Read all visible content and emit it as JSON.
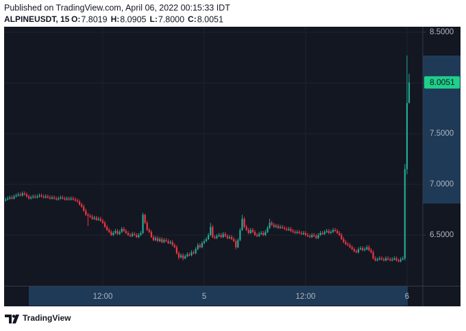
{
  "header": {
    "published": "Published on TradingView.com, April 06, 2022 00:15:33 IDT",
    "symbol": "ALPINEUSDT, 15",
    "legend": [
      {
        "label": "O:",
        "value": "7.8019"
      },
      {
        "label": "H:",
        "value": "8.0905"
      },
      {
        "label": "L:",
        "value": "7.8000"
      },
      {
        "label": "C:",
        "value": "8.0051"
      }
    ]
  },
  "footer": {
    "brand": "TradingView"
  },
  "chart_data": {
    "type": "candlestick",
    "categories": [
      null,
      null,
      null,
      null,
      null,
      null,
      null,
      null,
      null,
      null,
      null,
      null,
      null,
      null,
      null,
      null,
      null,
      null,
      null,
      null,
      null,
      null,
      null,
      null,
      null,
      null,
      null,
      null,
      null,
      null,
      null,
      null,
      null,
      null,
      null,
      null,
      null,
      null,
      null,
      null,
      null,
      null,
      null,
      null,
      null,
      null,
      "12:00",
      null,
      null,
      null,
      null,
      null,
      null,
      null,
      null,
      null,
      null,
      null,
      null,
      null,
      null,
      null,
      null,
      null,
      null,
      null,
      null,
      null,
      null,
      null,
      null,
      null,
      null,
      null,
      null,
      null,
      null,
      null,
      null,
      null,
      null,
      null,
      null,
      null,
      null,
      null,
      null,
      null,
      null,
      null,
      null,
      null,
      null,
      null,
      "5",
      null,
      null,
      null,
      null,
      null,
      null,
      null,
      null,
      null,
      null,
      null,
      null,
      null,
      null,
      null,
      null,
      null,
      null,
      null,
      null,
      null,
      null,
      null,
      null,
      null,
      null,
      null,
      null,
      null,
      null,
      null,
      null,
      null,
      null,
      null,
      null,
      null,
      null,
      null,
      null,
      null,
      null,
      null,
      null,
      null,
      null,
      null,
      "12:00",
      null,
      null,
      null,
      null,
      null,
      null,
      null,
      null,
      null,
      null,
      null,
      null,
      null,
      null,
      null,
      null,
      null,
      null,
      null,
      null,
      null,
      null,
      null,
      null,
      null,
      null,
      null,
      null,
      null,
      null,
      null,
      null,
      null,
      null,
      null,
      null,
      null,
      null,
      null,
      null,
      null,
      null,
      null,
      null,
      null,
      null,
      null,
      "6",
      null
    ],
    "open": [
      6.84,
      6.85,
      6.86,
      6.87,
      6.86,
      6.88,
      6.89,
      6.9,
      6.89,
      6.91,
      6.9,
      6.88,
      6.86,
      6.87,
      6.88,
      6.87,
      6.88,
      6.89,
      6.88,
      6.87,
      6.88,
      6.87,
      6.86,
      6.87,
      6.86,
      6.85,
      6.86,
      6.87,
      6.86,
      6.85,
      6.86,
      6.85,
      6.86,
      6.85,
      6.84,
      6.83,
      6.8,
      6.78,
      6.74,
      6.7,
      6.69,
      6.68,
      6.66,
      6.67,
      6.65,
      6.66,
      6.64,
      6.62,
      6.58,
      6.55,
      6.53,
      6.5,
      6.52,
      6.54,
      6.51,
      6.53,
      6.56,
      6.54,
      6.52,
      6.5,
      6.49,
      6.51,
      6.5,
      6.48,
      6.5,
      6.52,
      6.7,
      6.62,
      6.55,
      6.53,
      6.48,
      6.45,
      6.47,
      6.44,
      6.46,
      6.43,
      6.45,
      6.44,
      6.42,
      6.43,
      6.4,
      6.38,
      6.32,
      6.28,
      6.3,
      6.27,
      6.29,
      6.31,
      6.3,
      6.33,
      6.32,
      6.36,
      6.4,
      6.38,
      6.42,
      6.44,
      6.46,
      6.5,
      6.58,
      6.48,
      6.47,
      6.49,
      6.5,
      6.48,
      6.51,
      6.49,
      6.47,
      6.48,
      6.46,
      6.44,
      6.38,
      6.45,
      6.55,
      6.66,
      6.58,
      6.55,
      6.52,
      6.55,
      6.53,
      6.5,
      6.49,
      6.51,
      6.52,
      6.5,
      6.53,
      6.57,
      6.62,
      6.6,
      6.58,
      6.59,
      6.57,
      6.58,
      6.57,
      6.56,
      6.55,
      6.56,
      6.54,
      6.53,
      6.52,
      6.53,
      6.52,
      6.51,
      6.52,
      6.5,
      6.49,
      6.48,
      6.5,
      6.49,
      6.47,
      6.5,
      6.52,
      6.51,
      6.53,
      6.54,
      6.52,
      6.53,
      6.55,
      6.54,
      6.52,
      6.5,
      6.46,
      6.43,
      6.41,
      6.4,
      6.38,
      6.36,
      6.34,
      6.33,
      6.36,
      6.37,
      6.35,
      6.36,
      6.38,
      6.35,
      6.33,
      6.27,
      6.25,
      6.26,
      6.27,
      6.26,
      6.25,
      6.27,
      6.26,
      6.25,
      6.26,
      6.27,
      6.25,
      6.24,
      6.26,
      6.27,
      7.15,
      7.8019
    ],
    "high": [
      6.87,
      6.88,
      6.89,
      6.89,
      6.9,
      6.91,
      6.92,
      6.92,
      6.93,
      6.93,
      6.92,
      6.9,
      6.89,
      6.9,
      6.9,
      6.9,
      6.91,
      6.91,
      6.9,
      6.9,
      6.9,
      6.89,
      6.89,
      6.89,
      6.88,
      6.88,
      6.89,
      6.89,
      6.88,
      6.88,
      6.88,
      6.88,
      6.88,
      6.87,
      6.86,
      6.85,
      6.82,
      6.8,
      6.76,
      6.72,
      6.71,
      6.7,
      6.69,
      6.69,
      6.68,
      6.68,
      6.66,
      6.64,
      6.6,
      6.57,
      6.55,
      6.54,
      6.56,
      6.56,
      6.55,
      6.58,
      6.58,
      6.56,
      6.54,
      6.52,
      6.53,
      6.53,
      6.52,
      6.52,
      6.54,
      6.72,
      6.71,
      6.64,
      6.57,
      6.55,
      6.5,
      6.49,
      6.49,
      6.48,
      6.48,
      6.47,
      6.47,
      6.46,
      6.45,
      6.45,
      6.42,
      6.4,
      6.34,
      6.32,
      6.32,
      6.31,
      6.33,
      6.33,
      6.35,
      6.35,
      6.38,
      6.42,
      6.42,
      6.44,
      6.46,
      6.48,
      6.52,
      6.62,
      6.6,
      6.5,
      6.51,
      6.52,
      6.52,
      6.53,
      6.53,
      6.51,
      6.5,
      6.5,
      6.48,
      6.46,
      6.47,
      6.57,
      6.7,
      6.68,
      6.6,
      6.57,
      6.57,
      6.57,
      6.55,
      6.52,
      6.53,
      6.54,
      6.54,
      6.55,
      6.59,
      6.66,
      6.64,
      6.62,
      6.61,
      6.61,
      6.6,
      6.6,
      6.59,
      6.58,
      6.58,
      6.58,
      6.56,
      6.55,
      6.55,
      6.55,
      6.54,
      6.54,
      6.54,
      6.52,
      6.51,
      6.52,
      6.52,
      6.51,
      6.52,
      6.54,
      6.54,
      6.55,
      6.56,
      6.56,
      6.55,
      6.57,
      6.57,
      6.56,
      6.54,
      6.52,
      6.48,
      6.45,
      6.43,
      6.42,
      6.4,
      6.38,
      6.36,
      6.38,
      6.39,
      6.39,
      6.38,
      6.4,
      6.4,
      6.37,
      6.35,
      6.29,
      6.28,
      6.29,
      6.29,
      6.28,
      6.29,
      6.29,
      6.28,
      6.28,
      6.29,
      6.29,
      6.27,
      6.28,
      6.29,
      7.2,
      8.27,
      8.0905
    ],
    "low": [
      6.83,
      6.84,
      6.85,
      6.85,
      6.85,
      6.87,
      6.88,
      6.88,
      6.88,
      6.89,
      6.87,
      6.85,
      6.85,
      6.86,
      6.86,
      6.86,
      6.87,
      6.87,
      6.86,
      6.86,
      6.86,
      6.85,
      6.85,
      6.85,
      6.84,
      6.84,
      6.85,
      6.85,
      6.84,
      6.84,
      6.84,
      6.84,
      6.84,
      6.83,
      6.82,
      6.79,
      6.77,
      6.73,
      6.69,
      6.59,
      6.67,
      6.65,
      6.65,
      6.64,
      6.64,
      6.63,
      6.61,
      6.57,
      6.54,
      6.52,
      6.49,
      6.49,
      6.51,
      6.5,
      6.5,
      6.52,
      6.53,
      6.51,
      6.49,
      6.48,
      6.48,
      6.49,
      6.47,
      6.47,
      6.49,
      6.51,
      6.61,
      6.54,
      6.52,
      6.47,
      6.44,
      6.44,
      6.43,
      6.43,
      6.42,
      6.42,
      6.43,
      6.41,
      6.41,
      6.39,
      6.37,
      6.31,
      6.26,
      6.27,
      6.25,
      6.26,
      6.28,
      6.29,
      6.29,
      6.31,
      6.31,
      6.35,
      6.37,
      6.37,
      6.41,
      6.43,
      6.45,
      6.49,
      6.47,
      6.46,
      6.46,
      6.48,
      6.47,
      6.47,
      6.48,
      6.46,
      6.46,
      6.45,
      6.43,
      6.36,
      6.37,
      6.44,
      6.54,
      6.57,
      6.54,
      6.51,
      6.51,
      6.52,
      6.49,
      6.48,
      6.48,
      6.5,
      6.49,
      6.49,
      6.52,
      6.56,
      6.59,
      6.57,
      6.57,
      6.56,
      6.56,
      6.56,
      6.55,
      6.54,
      6.54,
      6.53,
      6.52,
      6.51,
      6.51,
      6.51,
      6.5,
      6.5,
      6.49,
      6.48,
      6.47,
      6.47,
      6.48,
      6.46,
      6.46,
      6.49,
      6.5,
      6.5,
      6.52,
      6.51,
      6.51,
      6.52,
      6.53,
      6.51,
      6.49,
      6.45,
      6.42,
      6.4,
      6.39,
      6.37,
      6.35,
      6.33,
      6.32,
      6.32,
      6.35,
      6.34,
      6.34,
      6.35,
      6.34,
      6.32,
      6.26,
      6.24,
      6.24,
      6.25,
      6.25,
      6.24,
      6.24,
      6.25,
      6.24,
      6.24,
      6.25,
      6.24,
      6.23,
      6.23,
      6.25,
      6.25,
      7.1,
      7.8
    ],
    "close": [
      6.85,
      6.86,
      6.87,
      6.86,
      6.88,
      6.89,
      6.9,
      6.89,
      6.91,
      6.9,
      6.88,
      6.86,
      6.87,
      6.88,
      6.87,
      6.88,
      6.89,
      6.88,
      6.87,
      6.88,
      6.87,
      6.86,
      6.87,
      6.86,
      6.85,
      6.86,
      6.87,
      6.86,
      6.85,
      6.86,
      6.85,
      6.86,
      6.85,
      6.84,
      6.83,
      6.8,
      6.78,
      6.74,
      6.7,
      6.69,
      6.68,
      6.66,
      6.67,
      6.65,
      6.66,
      6.64,
      6.62,
      6.58,
      6.55,
      6.53,
      6.5,
      6.52,
      6.54,
      6.51,
      6.53,
      6.56,
      6.54,
      6.52,
      6.5,
      6.49,
      6.51,
      6.5,
      6.48,
      6.5,
      6.52,
      6.7,
      6.62,
      6.55,
      6.53,
      6.48,
      6.45,
      6.47,
      6.44,
      6.46,
      6.43,
      6.45,
      6.44,
      6.42,
      6.43,
      6.4,
      6.38,
      6.32,
      6.28,
      6.3,
      6.27,
      6.29,
      6.31,
      6.3,
      6.33,
      6.32,
      6.36,
      6.4,
      6.38,
      6.42,
      6.44,
      6.46,
      6.5,
      6.58,
      6.48,
      6.47,
      6.49,
      6.5,
      6.48,
      6.51,
      6.49,
      6.47,
      6.48,
      6.46,
      6.44,
      6.38,
      6.45,
      6.55,
      6.66,
      6.58,
      6.55,
      6.52,
      6.55,
      6.53,
      6.5,
      6.49,
      6.51,
      6.52,
      6.5,
      6.53,
      6.57,
      6.62,
      6.6,
      6.58,
      6.59,
      6.57,
      6.58,
      6.57,
      6.56,
      6.55,
      6.56,
      6.54,
      6.53,
      6.52,
      6.53,
      6.52,
      6.51,
      6.52,
      6.5,
      6.49,
      6.48,
      6.5,
      6.49,
      6.47,
      6.5,
      6.52,
      6.51,
      6.53,
      6.54,
      6.52,
      6.53,
      6.55,
      6.54,
      6.52,
      6.5,
      6.46,
      6.43,
      6.41,
      6.4,
      6.38,
      6.36,
      6.34,
      6.33,
      6.36,
      6.37,
      6.35,
      6.36,
      6.38,
      6.35,
      6.33,
      6.27,
      6.25,
      6.26,
      6.27,
      6.26,
      6.25,
      6.27,
      6.26,
      6.25,
      6.26,
      6.27,
      6.25,
      6.24,
      6.26,
      6.27,
      7.15,
      7.8019,
      8.0051
    ],
    "up_color": "#22ab94",
    "down_color": "#f23645",
    "ylim": [
      6,
      8.55
    ],
    "yticks": [
      {
        "value": 6.5,
        "label": "6.5000"
      },
      {
        "value": 7,
        "label": "7.0000"
      },
      {
        "value": 7.5,
        "label": "7.5000"
      },
      {
        "value": 8,
        "label": "8.0000"
      },
      {
        "value": 8.5,
        "label": "8.5000"
      }
    ],
    "grid": true
  }
}
